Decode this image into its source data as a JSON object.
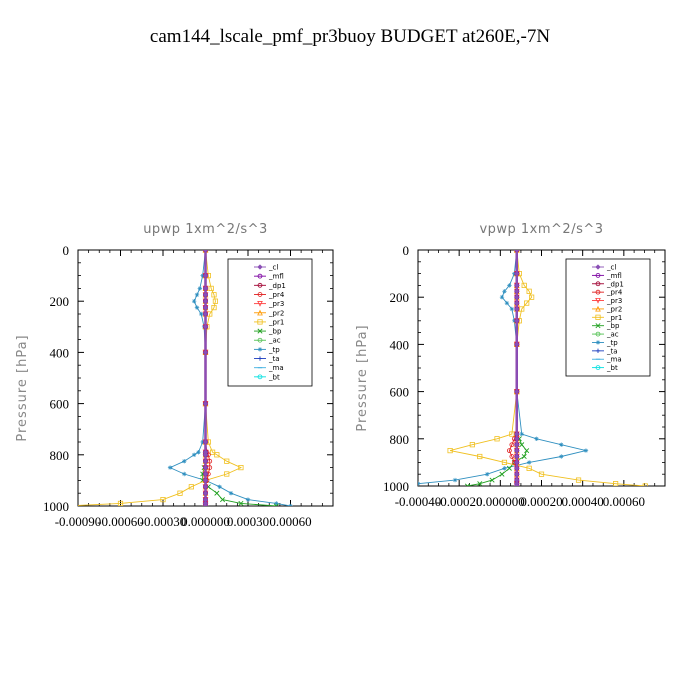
{
  "page_title": "cam144_lscale_pmf_pr3buoy  BUDGET at260E,-7N",
  "chart_data": [
    {
      "type": "line",
      "title": "upwp   1xm^2/s^3",
      "xlabel": "",
      "ylabel": "Pressure [hPa]",
      "xlim": [
        -0.0009,
        0.0009
      ],
      "ylim": [
        1000,
        0
      ],
      "x_tick_labels": [
        "-0.00090",
        "-0.00060",
        "-0.00030",
        "0.000000",
        "0.00030",
        "0.00060"
      ],
      "y_tick_labels": [
        "0",
        "200",
        "400",
        "600",
        "800",
        "1000"
      ],
      "legend_position": "upper-right",
      "y": [
        0,
        100,
        150,
        175,
        200,
        225,
        250,
        300,
        400,
        600,
        750,
        790,
        800,
        825,
        850,
        875,
        900,
        925,
        950,
        975,
        990,
        1000
      ],
      "series": [
        {
          "name": "_cl",
          "color": "#8a4fb5",
          "marker": "diamond",
          "x": [
            0,
            0,
            0,
            0,
            0,
            0,
            0,
            0,
            0,
            0,
            0,
            0,
            0,
            0,
            0,
            0,
            0,
            0,
            0,
            0,
            0,
            0
          ]
        },
        {
          "name": "_mfl",
          "color": "#7a00a0",
          "marker": "circle",
          "x": [
            0,
            0,
            0,
            0,
            0,
            0,
            0,
            0,
            0,
            0,
            0,
            0,
            0,
            0,
            0,
            0,
            0,
            0,
            0,
            0,
            0,
            0
          ]
        },
        {
          "name": "_dp1",
          "color": "#a00030",
          "marker": "circle",
          "x": [
            0,
            0,
            0,
            0,
            0,
            0,
            0,
            0,
            0,
            0,
            0,
            0,
            0,
            0,
            0,
            0,
            0,
            0,
            0,
            0,
            0,
            0
          ]
        },
        {
          "name": "_pr4",
          "color": "#e02020",
          "marker": "circle",
          "x": [
            0,
            0,
            0,
            0,
            0,
            0,
            0,
            0,
            0,
            0,
            0,
            1e-05,
            2e-05,
            3e-05,
            3e-05,
            2e-05,
            1e-05,
            0,
            0,
            0,
            0,
            0
          ]
        },
        {
          "name": "_pr3",
          "color": "#ff4040",
          "marker": "triangle-down",
          "x": [
            0,
            0,
            0,
            0,
            0,
            0,
            0,
            0,
            0,
            0,
            0,
            0,
            0,
            0,
            0,
            0,
            0,
            0,
            0,
            0,
            0,
            0
          ]
        },
        {
          "name": "_pr2",
          "color": "#ff9900",
          "marker": "triangle",
          "x": [
            0,
            0,
            0,
            0,
            0,
            0,
            0,
            0,
            0,
            0,
            0,
            0,
            0,
            0,
            0,
            0,
            0,
            0,
            0,
            0,
            0,
            0
          ]
        },
        {
          "name": "_pr1",
          "color": "#f0c020",
          "marker": "square",
          "x": [
            0,
            2e-05,
            4e-05,
            6e-05,
            7e-05,
            6e-05,
            3e-05,
            1e-05,
            0,
            0,
            2e-05,
            5e-05,
            8e-05,
            0.00015,
            0.00025,
            0.00015,
            0,
            -0.0001,
            -0.00018,
            -0.0003,
            -0.0006,
            -0.00098
          ]
        },
        {
          "name": "_bp",
          "color": "#20a020",
          "marker": "cross",
          "x": [
            0,
            0,
            0,
            0,
            0,
            0,
            0,
            0,
            0,
            0,
            0,
            0,
            0,
            0,
            -1e-05,
            -2e-05,
            -2e-05,
            2e-05,
            8e-05,
            0.00012,
            0.00025,
            0.0005
          ]
        },
        {
          "name": "_ac",
          "color": "#50c050",
          "marker": "circle",
          "x": [
            0,
            0,
            0,
            0,
            0,
            0,
            0,
            0,
            0,
            0,
            0,
            0,
            0,
            0,
            0,
            0,
            0,
            0,
            0,
            0,
            0,
            0
          ]
        },
        {
          "name": "_tp",
          "color": "#3090c0",
          "marker": "star",
          "x": [
            0,
            -2e-05,
            -4e-05,
            -6e-05,
            -8e-05,
            -6e-05,
            -3e-05,
            -1e-05,
            0,
            0,
            -2e-05,
            -5e-05,
            -8e-05,
            -0.00015,
            -0.00025,
            -0.00015,
            0,
            0.0001,
            0.00018,
            0.0003,
            0.0005,
            0.0006
          ]
        },
        {
          "name": "_ta",
          "color": "#2040c0",
          "marker": "plus",
          "x": [
            0,
            0,
            0,
            0,
            0,
            0,
            0,
            0,
            0,
            0,
            0,
            0,
            0,
            0,
            0,
            0,
            0,
            0,
            0,
            0,
            0,
            0
          ]
        },
        {
          "name": "_ma",
          "color": "#40b0e0",
          "marker": "dash",
          "x": [
            0,
            0,
            0,
            0,
            0,
            0,
            0,
            0,
            0,
            0,
            0,
            0,
            0,
            0,
            0,
            0,
            0,
            0,
            0,
            0,
            0,
            0
          ]
        },
        {
          "name": "_bt",
          "color": "#00e0e0",
          "marker": "circle",
          "x": [
            0,
            0,
            0,
            0,
            0,
            0,
            0,
            0,
            0,
            0,
            0,
            0,
            0,
            0,
            0,
            0,
            0,
            0,
            0,
            0,
            0,
            0
          ]
        }
      ]
    },
    {
      "type": "line",
      "title": "vpwp   1xm^2/s^3",
      "xlabel": "",
      "ylabel": "Pressure [hPa]",
      "xlim": [
        -0.0004,
        0.0006
      ],
      "ylim": [
        1000,
        0
      ],
      "x_tick_labels": [
        "-0.00040",
        "-0.00020",
        "0.000000",
        "0.00020",
        "0.00040",
        "0.00060"
      ],
      "y_tick_labels": [
        "0",
        "200",
        "400",
        "600",
        "800",
        "1000"
      ],
      "legend_position": "upper-right",
      "y": [
        0,
        100,
        150,
        175,
        200,
        225,
        250,
        300,
        400,
        600,
        780,
        800,
        825,
        850,
        875,
        900,
        925,
        950,
        975,
        990,
        1000
      ],
      "series": [
        {
          "name": "_cl",
          "color": "#8a4fb5",
          "marker": "diamond",
          "x": [
            0,
            0,
            0,
            0,
            0,
            0,
            0,
            0,
            0,
            0,
            0,
            0,
            0,
            0,
            0,
            0,
            0,
            0,
            0,
            0,
            0
          ]
        },
        {
          "name": "_mfl",
          "color": "#7a00a0",
          "marker": "circle",
          "x": [
            0,
            0,
            0,
            0,
            0,
            0,
            0,
            0,
            0,
            0,
            0,
            0,
            0,
            0,
            0,
            0,
            0,
            0,
            0,
            0,
            0
          ]
        },
        {
          "name": "_dp1",
          "color": "#a00030",
          "marker": "circle",
          "x": [
            0,
            0,
            0,
            0,
            0,
            0,
            0,
            0,
            0,
            0,
            0,
            0,
            0,
            0,
            0,
            0,
            0,
            0,
            0,
            0,
            0
          ]
        },
        {
          "name": "_pr4",
          "color": "#e02020",
          "marker": "circle",
          "x": [
            0,
            0,
            0,
            0,
            0,
            0,
            0,
            0,
            0,
            0,
            0,
            -1e-05,
            -2e-05,
            -3e-05,
            -2e-05,
            -1e-05,
            0,
            0,
            0,
            0,
            0
          ]
        },
        {
          "name": "_pr3",
          "color": "#ff4040",
          "marker": "triangle-down",
          "x": [
            0,
            0,
            0,
            0,
            0,
            0,
            0,
            0,
            0,
            0,
            0,
            0,
            0,
            0,
            0,
            0,
            0,
            0,
            0,
            0,
            0
          ]
        },
        {
          "name": "_pr2",
          "color": "#ff9900",
          "marker": "triangle",
          "x": [
            0,
            0,
            0,
            0,
            0,
            0,
            0,
            0,
            0,
            0,
            0,
            0,
            0,
            0,
            0,
            0,
            0,
            0,
            0,
            0,
            0
          ]
        },
        {
          "name": "_pr1",
          "color": "#f0c020",
          "marker": "square",
          "x": [
            0,
            1e-05,
            3e-05,
            5e-05,
            6e-05,
            4e-05,
            2e-05,
            1e-05,
            0,
            0,
            -2e-05,
            -8e-05,
            -0.00018,
            -0.00027,
            -0.00015,
            -5e-05,
            5e-05,
            0.0001,
            0.00025,
            0.0004,
            0.00052
          ]
        },
        {
          "name": "_bp",
          "color": "#20a020",
          "marker": "cross",
          "x": [
            0,
            0,
            0,
            0,
            0,
            0,
            0,
            0,
            0,
            0,
            0,
            1e-05,
            2e-05,
            4e-05,
            3e-05,
            -1e-05,
            -3e-05,
            -6e-05,
            -0.0001,
            -0.00015,
            -0.0002
          ]
        },
        {
          "name": "_ac",
          "color": "#50c050",
          "marker": "circle",
          "x": [
            0,
            0,
            0,
            0,
            0,
            0,
            0,
            0,
            0,
            0,
            0,
            0,
            0,
            0,
            0,
            0,
            0,
            0,
            0,
            0,
            0
          ]
        },
        {
          "name": "_tp",
          "color": "#3090c0",
          "marker": "star",
          "x": [
            0,
            -1e-05,
            -3e-05,
            -5e-05,
            -6e-05,
            -4e-05,
            -2e-05,
            -1e-05,
            0,
            0,
            2e-05,
            8e-05,
            0.00018,
            0.00028,
            0.00018,
            5e-05,
            -5e-05,
            -0.00012,
            -0.00025,
            -0.0004,
            -0.00052
          ]
        },
        {
          "name": "_ta",
          "color": "#2040c0",
          "marker": "plus",
          "x": [
            0,
            0,
            0,
            0,
            0,
            0,
            0,
            0,
            0,
            0,
            0,
            0,
            0,
            0,
            0,
            0,
            0,
            0,
            0,
            0,
            0
          ]
        },
        {
          "name": "_ma",
          "color": "#40b0e0",
          "marker": "dash",
          "x": [
            0,
            0,
            0,
            0,
            0,
            0,
            0,
            0,
            0,
            0,
            0,
            0,
            0,
            0,
            0,
            0,
            0,
            0,
            0,
            0,
            0
          ]
        },
        {
          "name": "_bt",
          "color": "#00e0e0",
          "marker": "circle",
          "x": [
            0,
            0,
            0,
            0,
            0,
            0,
            0,
            0,
            0,
            0,
            0,
            0,
            0,
            0,
            0,
            0,
            0,
            0,
            0,
            0,
            0
          ]
        }
      ]
    }
  ]
}
